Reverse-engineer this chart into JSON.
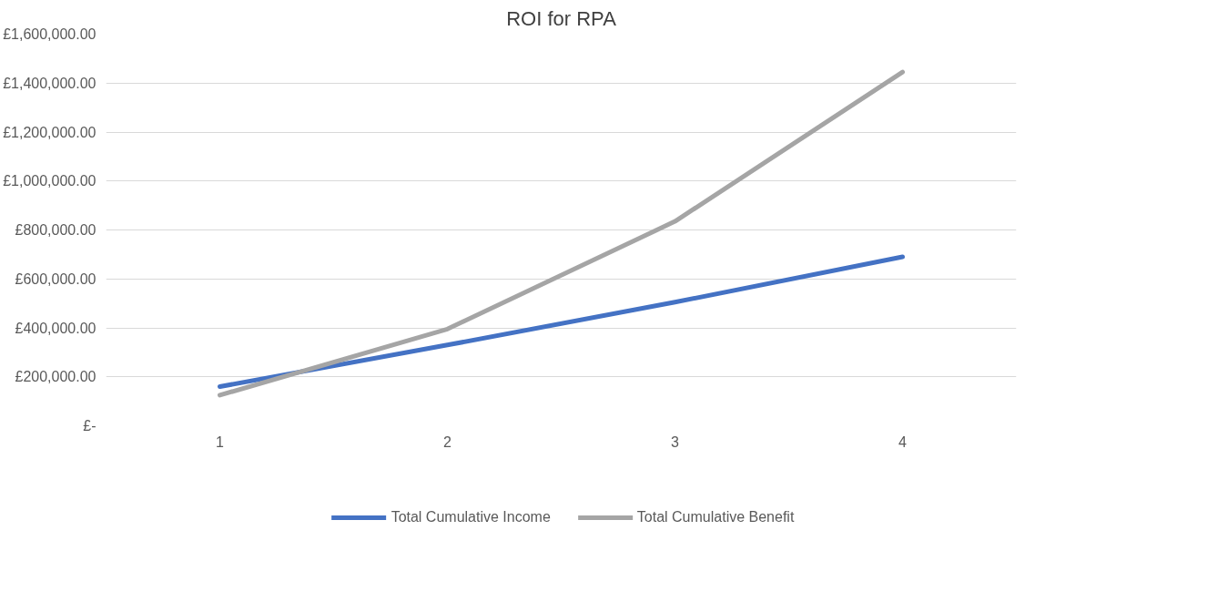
{
  "chart_data": {
    "type": "line",
    "title": "ROI for RPA",
    "categories": [
      "1",
      "2",
      "3",
      "4"
    ],
    "series": [
      {
        "name": "Total Cumulative Income",
        "color": "#4472c4",
        "values": [
          160000,
          330000,
          505000,
          690000
        ]
      },
      {
        "name": "Total Cumulative Benefit",
        "color": "#a5a5a5",
        "values": [
          125000,
          395000,
          835000,
          1445000
        ]
      }
    ],
    "ylim": [
      0,
      1600000
    ],
    "yticks": [
      {
        "value": 0,
        "label": "£-"
      },
      {
        "value": 200000,
        "label": "£200,000.00"
      },
      {
        "value": 400000,
        "label": "£400,000.00"
      },
      {
        "value": 600000,
        "label": "£600,000.00"
      },
      {
        "value": 800000,
        "label": "£800,000.00"
      },
      {
        "value": 1000000,
        "label": "£1,000,000.00"
      },
      {
        "value": 1200000,
        "label": "£1,200,000.00"
      },
      {
        "value": 1400000,
        "label": "£1,400,000.00"
      },
      {
        "value": 1600000,
        "label": "£1,600,000.00"
      }
    ],
    "grid": "y",
    "legend": "bottom",
    "marker": "none",
    "line_style": "solid"
  }
}
